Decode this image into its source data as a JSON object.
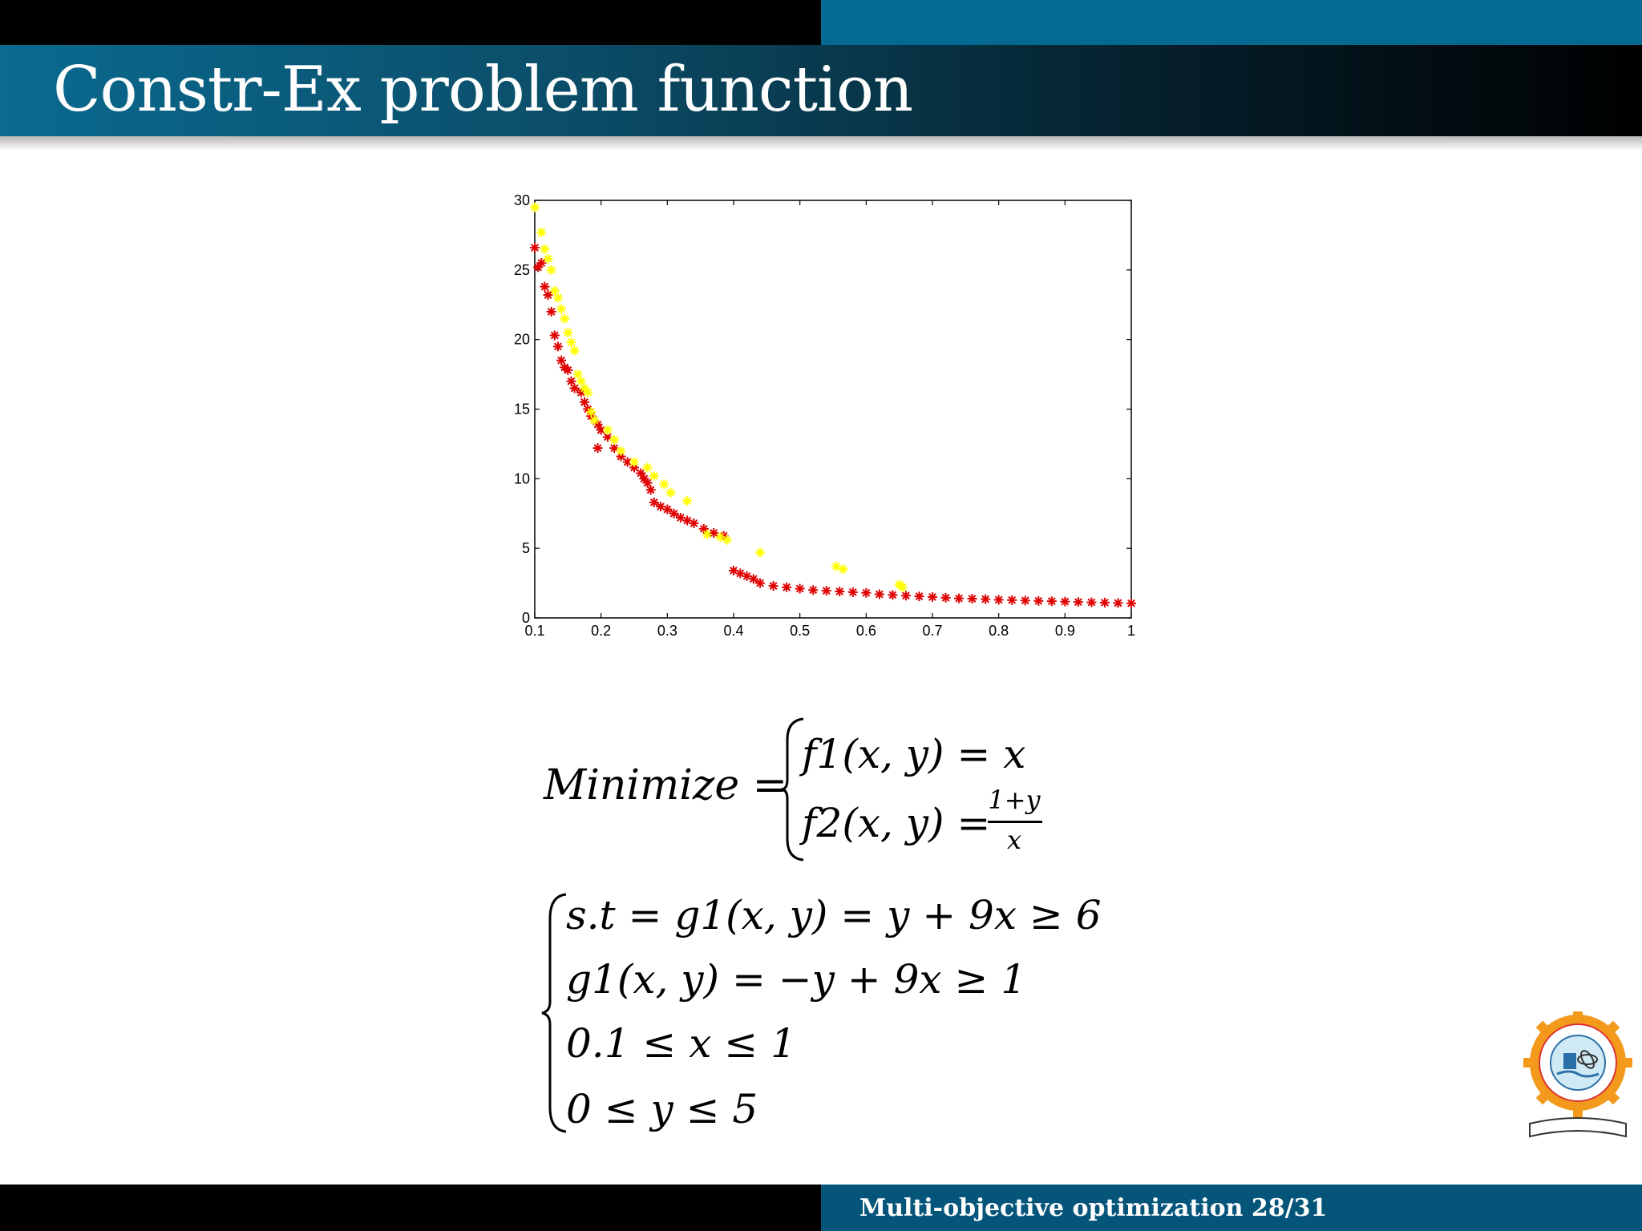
{
  "slide": {
    "title": "Constr-Ex problem function",
    "footer": "Multi-objective optimization 28/31",
    "logo_icon": "institute-logo"
  },
  "colors": {
    "teal": "#046a92",
    "black": "#000000",
    "series_red": "#e00000",
    "series_yellow": "#ffff00"
  },
  "equations": {
    "objective_label": "Minimize =",
    "f1": "f1(x, y) = x",
    "f2_left": "f2(x, y) =",
    "f2_num": "1+y",
    "f2_den": "x",
    "c1": "s.t = g1(x, y) = y + 9x ≥ 6",
    "c2": "g1(x, y) = −y + 9x ≥ 1",
    "c3": "0.1 ≤ x ≤ 1",
    "c4": "0 ≤ y ≤ 5"
  },
  "chart_data": {
    "type": "scatter",
    "xlim": [
      0.1,
      1
    ],
    "ylim": [
      0,
      30
    ],
    "x_ticks": [
      "0.1",
      "0.2",
      "0.3",
      "0.4",
      "0.5",
      "0.6",
      "0.7",
      "0.8",
      "0.9",
      "1"
    ],
    "y_ticks": [
      "0",
      "5",
      "10",
      "15",
      "20",
      "25",
      "30"
    ],
    "grid": false,
    "series": [
      {
        "color": "#e00000",
        "marker": "*",
        "points": [
          [
            0.1,
            26.6
          ],
          [
            0.105,
            25.2
          ],
          [
            0.11,
            25.5
          ],
          [
            0.115,
            23.8
          ],
          [
            0.12,
            23.2
          ],
          [
            0.125,
            22.0
          ],
          [
            0.13,
            20.3
          ],
          [
            0.135,
            19.5
          ],
          [
            0.14,
            18.5
          ],
          [
            0.145,
            18.0
          ],
          [
            0.15,
            17.8
          ],
          [
            0.155,
            17.0
          ],
          [
            0.16,
            16.5
          ],
          [
            0.17,
            16.2
          ],
          [
            0.175,
            15.5
          ],
          [
            0.18,
            15.0
          ],
          [
            0.185,
            14.5
          ],
          [
            0.19,
            14.2
          ],
          [
            0.195,
            13.9
          ],
          [
            0.2,
            13.5
          ],
          [
            0.195,
            12.2
          ],
          [
            0.21,
            13.0
          ],
          [
            0.22,
            12.2
          ],
          [
            0.23,
            11.6
          ],
          [
            0.24,
            11.2
          ],
          [
            0.25,
            10.8
          ],
          [
            0.26,
            10.4
          ],
          [
            0.265,
            10.0
          ],
          [
            0.27,
            9.7
          ],
          [
            0.275,
            9.2
          ],
          [
            0.28,
            8.3
          ],
          [
            0.29,
            8.0
          ],
          [
            0.3,
            7.8
          ],
          [
            0.31,
            7.5
          ],
          [
            0.32,
            7.2
          ],
          [
            0.33,
            7.0
          ],
          [
            0.34,
            6.8
          ],
          [
            0.355,
            6.4
          ],
          [
            0.37,
            6.1
          ],
          [
            0.385,
            5.9
          ],
          [
            0.4,
            3.4
          ],
          [
            0.41,
            3.2
          ],
          [
            0.42,
            3.0
          ],
          [
            0.43,
            2.8
          ],
          [
            0.44,
            2.5
          ],
          [
            0.46,
            2.3
          ],
          [
            0.48,
            2.2
          ],
          [
            0.5,
            2.1
          ],
          [
            0.52,
            2.0
          ],
          [
            0.54,
            1.95
          ],
          [
            0.56,
            1.9
          ],
          [
            0.58,
            1.85
          ],
          [
            0.6,
            1.8
          ],
          [
            0.62,
            1.7
          ],
          [
            0.64,
            1.65
          ],
          [
            0.66,
            1.6
          ],
          [
            0.68,
            1.55
          ],
          [
            0.7,
            1.5
          ],
          [
            0.72,
            1.45
          ],
          [
            0.74,
            1.4
          ],
          [
            0.76,
            1.38
          ],
          [
            0.78,
            1.35
          ],
          [
            0.8,
            1.3
          ],
          [
            0.82,
            1.28
          ],
          [
            0.84,
            1.25
          ],
          [
            0.86,
            1.22
          ],
          [
            0.88,
            1.2
          ],
          [
            0.9,
            1.17
          ],
          [
            0.92,
            1.14
          ],
          [
            0.94,
            1.12
          ],
          [
            0.96,
            1.1
          ],
          [
            0.98,
            1.07
          ],
          [
            1.0,
            1.05
          ]
        ]
      },
      {
        "color": "#ffff00",
        "marker": "*",
        "points": [
          [
            0.1,
            29.5
          ],
          [
            0.11,
            27.7
          ],
          [
            0.115,
            26.5
          ],
          [
            0.12,
            25.8
          ],
          [
            0.125,
            25.0
          ],
          [
            0.13,
            23.5
          ],
          [
            0.135,
            23.0
          ],
          [
            0.14,
            22.2
          ],
          [
            0.145,
            21.5
          ],
          [
            0.15,
            20.5
          ],
          [
            0.155,
            19.8
          ],
          [
            0.16,
            19.2
          ],
          [
            0.165,
            17.5
          ],
          [
            0.17,
            17.0
          ],
          [
            0.175,
            16.5
          ],
          [
            0.18,
            16.2
          ],
          [
            0.185,
            14.8
          ],
          [
            0.19,
            14.2
          ],
          [
            0.21,
            13.5
          ],
          [
            0.22,
            12.8
          ],
          [
            0.23,
            12.0
          ],
          [
            0.25,
            11.2
          ],
          [
            0.27,
            10.8
          ],
          [
            0.28,
            10.2
          ],
          [
            0.295,
            9.6
          ],
          [
            0.305,
            9.0
          ],
          [
            0.33,
            8.4
          ],
          [
            0.36,
            6.0
          ],
          [
            0.38,
            5.8
          ],
          [
            0.39,
            5.6
          ],
          [
            0.44,
            4.7
          ],
          [
            0.555,
            3.7
          ],
          [
            0.565,
            3.5
          ],
          [
            0.65,
            2.4
          ],
          [
            0.655,
            2.2
          ]
        ]
      }
    ]
  }
}
